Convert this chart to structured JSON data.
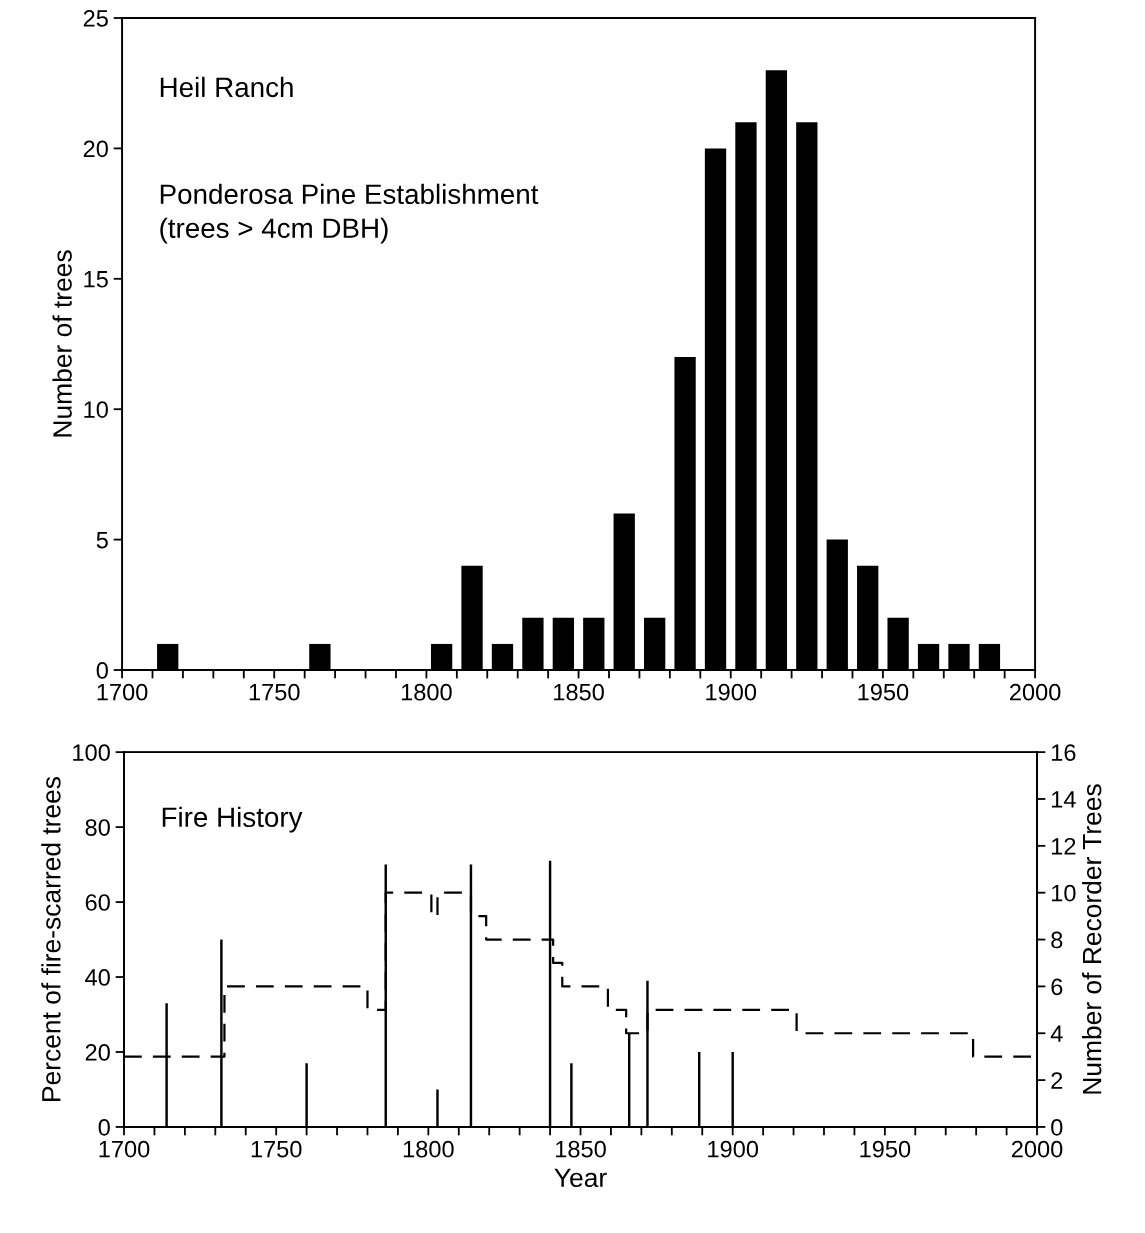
{
  "chart_data": [
    {
      "type": "bar",
      "ylabel": "Number of trees",
      "annotations": [
        "Heil Ranch",
        "Ponderosa Pine Establishment\n(trees > 4cm DBH)"
      ],
      "x": [
        1715,
        1765,
        1805,
        1815,
        1825,
        1835,
        1845,
        1855,
        1865,
        1875,
        1885,
        1895,
        1905,
        1915,
        1925,
        1935,
        1945,
        1955,
        1965,
        1975,
        1985
      ],
      "values": [
        1,
        1,
        1,
        4,
        1,
        2,
        2,
        2,
        6,
        2,
        12,
        20,
        21,
        23,
        21,
        5,
        4,
        2,
        1,
        1,
        1
      ],
      "color": "#000000",
      "xlim": [
        1700,
        2000
      ],
      "xticks": [
        1700,
        {
          "value": 1710,
          "label": null
        },
        {
          "value": 1720,
          "label": null
        },
        {
          "value": 1730,
          "label": null
        },
        {
          "value": 1740,
          "label": null
        },
        1750,
        {
          "value": 1760,
          "label": null
        },
        {
          "value": 1770,
          "label": null
        },
        {
          "value": 1780,
          "label": null
        },
        {
          "value": 1790,
          "label": null
        },
        1800,
        {
          "value": 1810,
          "label": null
        },
        {
          "value": 1820,
          "label": null
        },
        {
          "value": 1830,
          "label": null
        },
        {
          "value": 1840,
          "label": null
        },
        1850,
        {
          "value": 1860,
          "label": null
        },
        {
          "value": 1870,
          "label": null
        },
        {
          "value": 1880,
          "label": null
        },
        {
          "value": 1890,
          "label": null
        },
        1900,
        {
          "value": 1910,
          "label": null
        },
        {
          "value": 1920,
          "label": null
        },
        {
          "value": 1930,
          "label": null
        },
        {
          "value": 1940,
          "label": null
        },
        1950,
        {
          "value": 1960,
          "label": null
        },
        {
          "value": 1970,
          "label": null
        },
        {
          "value": 1980,
          "label": null
        },
        {
          "value": 1990,
          "label": null
        },
        2000
      ],
      "ylim": [
        0,
        25
      ],
      "yticks": [
        0,
        5,
        10,
        15,
        20,
        25
      ]
    },
    {
      "type": "bar",
      "xlabel": "Year",
      "ylabel": "Percent of fire-scarred trees",
      "y2label": "Number of Recorder Trees",
      "annotations": [
        "Fire History"
      ],
      "series": [
        {
          "type": "bar",
          "color": "#000000",
          "x": [
            1714,
            1732,
            1760,
            1786,
            1803,
            1814,
            1840,
            1847,
            1866,
            1872,
            1889,
            1900
          ],
          "values": [
            33,
            50,
            17,
            70,
            10,
            70,
            71,
            17,
            25,
            39,
            20,
            20
          ]
        },
        {
          "type": "step",
          "axis": "y2",
          "color": "#000000",
          "line_style": "dashed",
          "x": [
            1700,
            1733,
            1780,
            1786,
            1801,
            1803,
            1814,
            1819,
            1841,
            1844,
            1859,
            1865,
            1872,
            1921,
            1979,
            2000
          ],
          "values": [
            3,
            6,
            5,
            10,
            9,
            10,
            9,
            8,
            7,
            6,
            5,
            4,
            5,
            4,
            3,
            3
          ]
        }
      ],
      "xlim": [
        1700,
        2000
      ],
      "xticks": [
        1700,
        {
          "value": 1710,
          "label": null
        },
        {
          "value": 1720,
          "label": null
        },
        {
          "value": 1730,
          "label": null
        },
        {
          "value": 1740,
          "label": null
        },
        1750,
        {
          "value": 1760,
          "label": null
        },
        {
          "value": 1770,
          "label": null
        },
        {
          "value": 1780,
          "label": null
        },
        {
          "value": 1790,
          "label": null
        },
        1800,
        {
          "value": 1810,
          "label": null
        },
        {
          "value": 1820,
          "label": null
        },
        {
          "value": 1830,
          "label": null
        },
        {
          "value": 1840,
          "label": null
        },
        1850,
        {
          "value": 1860,
          "label": null
        },
        {
          "value": 1870,
          "label": null
        },
        {
          "value": 1880,
          "label": null
        },
        {
          "value": 1890,
          "label": null
        },
        1900,
        {
          "value": 1910,
          "label": null
        },
        {
          "value": 1920,
          "label": null
        },
        {
          "value": 1930,
          "label": null
        },
        {
          "value": 1940,
          "label": null
        },
        1950,
        {
          "value": 1960,
          "label": null
        },
        {
          "value": 1970,
          "label": null
        },
        {
          "value": 1980,
          "label": null
        },
        {
          "value": 1990,
          "label": null
        },
        2000
      ],
      "ylim": [
        0,
        100
      ],
      "yticks": [
        0,
        20,
        40,
        60,
        80,
        100
      ],
      "y2lim": [
        0,
        16
      ],
      "y2ticks": [
        0,
        2,
        4,
        6,
        8,
        10,
        12,
        14,
        16
      ]
    }
  ]
}
